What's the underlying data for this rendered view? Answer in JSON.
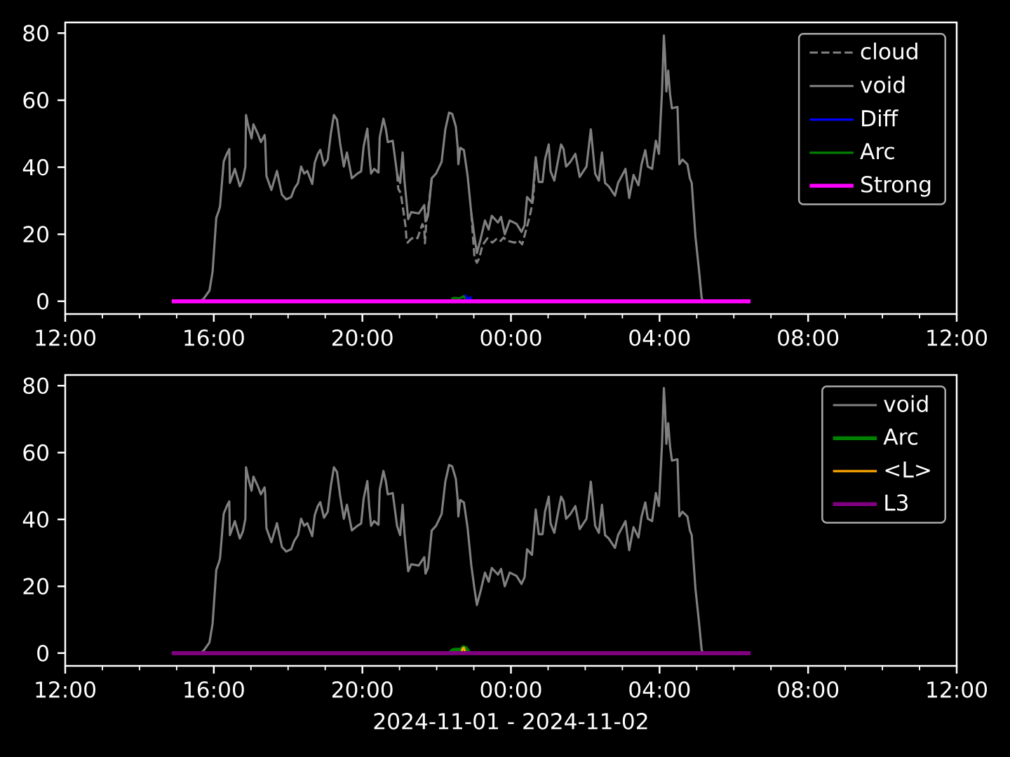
{
  "chart_data": [
    {
      "type": "line",
      "xlim": [
        "2024-11-01T12:00",
        "2024-11-02T12:00"
      ],
      "ylim": [
        -3.8,
        83.2
      ],
      "xticks": [
        {
          "value": "2024-11-01T12:00",
          "label": "12:00"
        },
        {
          "value": "2024-11-01T13:00",
          "label": null
        },
        {
          "value": "2024-11-01T14:00",
          "label": null
        },
        {
          "value": "2024-11-01T15:00",
          "label": null
        },
        {
          "value": "2024-11-01T16:00",
          "label": "16:00"
        },
        {
          "value": "2024-11-01T17:00",
          "label": null
        },
        {
          "value": "2024-11-01T18:00",
          "label": null
        },
        {
          "value": "2024-11-01T19:00",
          "label": null
        },
        {
          "value": "2024-11-01T20:00",
          "label": "20:00"
        },
        {
          "value": "2024-11-01T21:00",
          "label": null
        },
        {
          "value": "2024-11-01T22:00",
          "label": null
        },
        {
          "value": "2024-11-01T23:00",
          "label": null
        },
        {
          "value": "2024-11-02T00:00",
          "label": "00:00"
        },
        {
          "value": "2024-11-02T01:00",
          "label": null
        },
        {
          "value": "2024-11-02T02:00",
          "label": null
        },
        {
          "value": "2024-11-02T03:00",
          "label": null
        },
        {
          "value": "2024-11-02T04:00",
          "label": "04:00"
        },
        {
          "value": "2024-11-02T05:00",
          "label": null
        },
        {
          "value": "2024-11-02T06:00",
          "label": null
        },
        {
          "value": "2024-11-02T07:00",
          "label": null
        },
        {
          "value": "2024-11-02T08:00",
          "label": "08:00"
        },
        {
          "value": "2024-11-02T09:00",
          "label": null
        },
        {
          "value": "2024-11-02T10:00",
          "label": null
        },
        {
          "value": "2024-11-02T11:00",
          "label": null
        },
        {
          "value": "2024-11-02T12:00",
          "label": "12:00"
        }
      ],
      "yticks": [
        0,
        20,
        40,
        60,
        80
      ],
      "legend": "top right",
      "series": [
        {
          "name": "cloud",
          "color": "#808080",
          "line_style": "dashed",
          "x": [
            "2024-11-01T20:56",
            "2024-11-01T20:58",
            "2024-11-01T21:02",
            "2024-11-01T21:10",
            "2024-11-01T21:11",
            "2024-11-01T21:13",
            "2024-11-01T21:18",
            "2024-11-01T21:24",
            "2024-11-01T21:29",
            "2024-11-01T21:34",
            "2024-11-01T21:37",
            "2024-11-01T21:40",
            "2024-11-01T21:41",
            "2024-11-01T21:43",
            "2024-11-01T21:48",
            "2024-11-01T21:52",
            "2024-11-01T22:24",
            "2024-11-01T22:56",
            "2024-11-01T23:01",
            "2024-11-01T23:05",
            "2024-11-01T23:09",
            "2024-11-01T23:14",
            "2024-11-01T23:22",
            "2024-11-01T23:30",
            "2024-11-01T23:36",
            "2024-11-01T23:42",
            "2024-11-01T23:48",
            "2024-11-01T23:54",
            "2024-11-02T00:00",
            "2024-11-02T00:06",
            "2024-11-02T00:12",
            "2024-11-02T00:18",
            "2024-11-02T00:20",
            "2024-11-02T00:24",
            "2024-11-02T00:28",
            "2024-11-02T00:32",
            "2024-11-02T00:36",
            "2024-11-02T00:40"
          ],
          "values": [
            38.1,
            33.5,
            32.3,
            22,
            19,
            17.5,
            18.5,
            19.2,
            18.8,
            21.5,
            23,
            21.5,
            17.3,
            23,
            30,
            36.7,
            null,
            26.2,
            13.2,
            11.5,
            13,
            16.7,
            18.8,
            17.5,
            18.5,
            17.8,
            19,
            18,
            17.8,
            17.5,
            18.2,
            17,
            18.2,
            21,
            23.7,
            26.8,
            30.7,
            43
          ]
        },
        {
          "name": "void",
          "color": "#808080",
          "x": [
            "2024-11-01T15:36",
            "2024-11-01T15:43",
            "2024-11-01T15:53",
            "2024-11-01T15:58",
            "2024-11-01T16:04",
            "2024-11-01T16:08",
            "2024-11-01T16:10",
            "2024-11-01T16:16",
            "2024-11-01T16:21",
            "2024-11-01T16:25",
            "2024-11-01T16:26",
            "2024-11-01T16:34",
            "2024-11-01T16:42",
            "2024-11-01T16:47",
            "2024-11-01T16:51",
            "2024-11-01T16:52",
            "2024-11-01T16:56",
            "2024-11-01T17:01",
            "2024-11-01T17:04",
            "2024-11-01T17:11",
            "2024-11-01T17:16",
            "2024-11-01T17:22",
            "2024-11-01T17:23",
            "2024-11-01T17:25",
            "2024-11-01T17:33",
            "2024-11-01T17:42",
            "2024-11-01T17:50",
            "2024-11-01T17:57",
            "2024-11-01T18:05",
            "2024-11-01T18:10",
            "2024-11-01T18:16",
            "2024-11-01T18:21",
            "2024-11-01T18:26",
            "2024-11-01T18:31",
            "2024-11-01T18:39",
            "2024-11-01T18:43",
            "2024-11-01T18:48",
            "2024-11-01T18:52",
            "2024-11-01T18:58",
            "2024-11-01T19:04",
            "2024-11-01T19:09",
            "2024-11-01T19:14",
            "2024-11-01T19:19",
            "2024-11-01T19:24",
            "2024-11-01T19:30",
            "2024-11-01T19:35",
            "2024-11-01T19:43",
            "2024-11-01T19:52",
            "2024-11-01T19:58",
            "2024-11-01T20:02",
            "2024-11-01T20:08",
            "2024-11-01T20:11",
            "2024-11-01T20:14",
            "2024-11-01T20:19",
            "2024-11-01T20:26",
            "2024-11-01T20:28",
            "2024-11-01T20:34",
            "2024-11-01T20:38",
            "2024-11-01T20:41",
            "2024-11-01T20:49",
            "2024-11-01T20:56",
            "2024-11-01T21:01",
            "2024-11-01T21:05",
            "2024-11-01T21:08",
            "2024-11-01T21:14",
            "2024-11-01T21:19",
            "2024-11-01T21:31",
            "2024-11-01T21:40",
            "2024-11-01T21:42",
            "2024-11-01T21:46",
            "2024-11-01T21:52",
            "2024-11-01T21:59",
            "2024-11-01T22:08",
            "2024-11-01T22:14",
            "2024-11-01T22:20",
            "2024-11-01T22:25",
            "2024-11-01T22:31",
            "2024-11-01T22:34",
            "2024-11-01T22:35",
            "2024-11-01T22:38",
            "2024-11-01T22:44",
            "2024-11-01T22:50",
            "2024-11-01T22:56",
            "2024-11-01T23:01",
            "2024-11-01T23:05",
            "2024-11-01T23:11",
            "2024-11-01T23:18",
            "2024-11-01T23:24",
            "2024-11-01T23:29",
            "2024-11-01T23:39",
            "2024-11-01T23:44",
            "2024-11-01T23:50",
            "2024-11-01T23:58",
            "2024-11-02T00:09",
            "2024-11-02T00:17",
            "2024-11-02T00:22",
            "2024-11-02T00:26",
            "2024-11-02T00:34",
            "2024-11-02T00:40",
            "2024-11-02T00:45",
            "2024-11-02T00:51",
            "2024-11-02T00:55",
            "2024-11-02T01:01",
            "2024-11-02T01:04",
            "2024-11-02T01:10",
            "2024-11-02T01:17",
            "2024-11-02T01:21",
            "2024-11-02T01:25",
            "2024-11-02T01:29",
            "2024-11-02T01:36",
            "2024-11-02T01:44",
            "2024-11-02T01:51",
            "2024-11-02T02:02",
            "2024-11-02T02:09",
            "2024-11-02T02:16",
            "2024-11-02T02:22",
            "2024-11-02T02:27",
            "2024-11-02T02:32",
            "2024-11-02T02:38",
            "2024-11-02T02:48",
            "2024-11-02T02:53",
            "2024-11-02T02:59",
            "2024-11-02T03:05",
            "2024-11-02T03:11",
            "2024-11-02T03:18",
            "2024-11-02T03:26",
            "2024-11-02T03:31",
            "2024-11-02T03:37",
            "2024-11-02T03:41",
            "2024-11-02T03:48",
            "2024-11-02T03:54",
            "2024-11-02T03:59",
            "2024-11-02T04:04",
            "2024-11-02T04:07",
            "2024-11-02T04:09",
            "2024-11-02T04:11",
            "2024-11-02T04:14",
            "2024-11-02T04:17",
            "2024-11-02T04:20",
            "2024-11-02T04:29",
            "2024-11-02T04:32",
            "2024-11-02T04:37",
            "2024-11-02T04:45",
            "2024-11-02T04:49",
            "2024-11-02T04:52",
            "2024-11-02T04:58",
            "2024-11-02T05:04",
            "2024-11-02T05:08",
            "2024-11-02T05:10"
          ],
          "values": [
            0,
            0.6,
            3.2,
            8.8,
            24.9,
            27,
            28.3,
            41.7,
            44,
            45.4,
            35.3,
            39.5,
            34.3,
            36.4,
            40.2,
            55.6,
            52.1,
            48.6,
            52.8,
            50,
            47.5,
            49.6,
            47.9,
            37.4,
            33.2,
            38.9,
            31.8,
            30.4,
            31.1,
            33.6,
            35.3,
            40.2,
            38.1,
            38.9,
            35,
            41.3,
            44,
            45.2,
            40.5,
            42.3,
            50,
            55.6,
            54.2,
            47.2,
            40.2,
            44.4,
            36.7,
            38.1,
            38.8,
            46.2,
            51.5,
            44,
            38.1,
            39.5,
            38.4,
            48.9,
            54.5,
            51.3,
            47.5,
            47.9,
            38.1,
            35.3,
            44.4,
            36,
            24.5,
            26.6,
            26.2,
            28.7,
            23.8,
            25.5,
            36.7,
            38.1,
            41.6,
            51.3,
            56.3,
            55.9,
            52.1,
            45.8,
            40.9,
            45.8,
            45.1,
            37.4,
            26.2,
            19.3,
            14.4,
            18.6,
            24.1,
            21.4,
            25.5,
            23.5,
            25.2,
            20,
            24.1,
            23.1,
            20.7,
            22.7,
            31.1,
            29.4,
            43,
            35.6,
            35.6,
            42.3,
            46.8,
            38.8,
            36,
            43,
            46.8,
            45.4,
            40.2,
            41.6,
            44,
            37.1,
            40.2,
            51.3,
            38.1,
            36,
            44.4,
            35.3,
            34.3,
            31.5,
            35.3,
            37.4,
            39.5,
            30.8,
            37.7,
            34.6,
            40.9,
            45.1,
            40.2,
            39.5,
            47.9,
            44,
            62.6,
            79.3,
            73,
            62.6,
            68.8,
            61.8,
            57.6,
            58,
            40.9,
            42.3,
            40.9,
            36.7,
            35.3,
            19.3,
            8.8,
            1.1,
            0
          ]
        },
        {
          "name": "Diff",
          "color": "#0000ff",
          "x": [
            "2024-11-01T22:45",
            "2024-11-01T22:47",
            "2024-11-01T22:49",
            "2024-11-01T22:52",
            "2024-11-01T22:54",
            "2024-11-01T22:56"
          ],
          "values": [
            1.9,
            1.5,
            0.8,
            0.8,
            1.3,
            0.7
          ]
        },
        {
          "name": "Arc",
          "color": "#008000",
          "x": [
            "2024-11-01T22:24",
            "2024-11-01T22:27",
            "2024-11-01T22:31",
            "2024-11-01T22:36",
            "2024-11-01T22:40",
            "2024-11-01T22:43",
            "2024-11-01T22:46"
          ],
          "values": [
            0.7,
            1.0,
            1.0,
            0.9,
            1.1,
            1.5,
            0.7
          ]
        },
        {
          "name": "Strong",
          "color": "#ff00ff",
          "x": [
            "2024-11-01T14:52",
            "2024-11-02T06:27"
          ],
          "values": [
            0,
            0
          ]
        }
      ]
    },
    {
      "type": "line",
      "xlim": [
        "2024-11-01T12:00",
        "2024-11-02T12:00"
      ],
      "ylim": [
        -3.8,
        83.2
      ],
      "xlabel": "2024-11-01 - 2024-11-02",
      "xticks": [
        {
          "value": "2024-11-01T12:00",
          "label": "12:00"
        },
        {
          "value": "2024-11-01T13:00",
          "label": null
        },
        {
          "value": "2024-11-01T14:00",
          "label": null
        },
        {
          "value": "2024-11-01T15:00",
          "label": null
        },
        {
          "value": "2024-11-01T16:00",
          "label": "16:00"
        },
        {
          "value": "2024-11-01T17:00",
          "label": null
        },
        {
          "value": "2024-11-01T18:00",
          "label": null
        },
        {
          "value": "2024-11-01T19:00",
          "label": null
        },
        {
          "value": "2024-11-01T20:00",
          "label": "20:00"
        },
        {
          "value": "2024-11-01T21:00",
          "label": null
        },
        {
          "value": "2024-11-01T22:00",
          "label": null
        },
        {
          "value": "2024-11-01T23:00",
          "label": null
        },
        {
          "value": "2024-11-02T00:00",
          "label": "00:00"
        },
        {
          "value": "2024-11-02T01:00",
          "label": null
        },
        {
          "value": "2024-11-02T02:00",
          "label": null
        },
        {
          "value": "2024-11-02T03:00",
          "label": null
        },
        {
          "value": "2024-11-02T04:00",
          "label": "04:00"
        },
        {
          "value": "2024-11-02T05:00",
          "label": null
        },
        {
          "value": "2024-11-02T06:00",
          "label": null
        },
        {
          "value": "2024-11-02T07:00",
          "label": null
        },
        {
          "value": "2024-11-02T08:00",
          "label": "08:00"
        },
        {
          "value": "2024-11-02T09:00",
          "label": null
        },
        {
          "value": "2024-11-02T10:00",
          "label": null
        },
        {
          "value": "2024-11-02T11:00",
          "label": null
        },
        {
          "value": "2024-11-02T12:00",
          "label": "12:00"
        }
      ],
      "yticks": [
        0,
        20,
        40,
        60,
        80
      ],
      "legend": "top right",
      "series": [
        {
          "name": "void",
          "color": "#808080",
          "x": [
            "2024-11-01T15:36",
            "2024-11-01T15:43",
            "2024-11-01T15:53",
            "2024-11-01T15:58",
            "2024-11-01T16:04",
            "2024-11-01T16:08",
            "2024-11-01T16:10",
            "2024-11-01T16:16",
            "2024-11-01T16:21",
            "2024-11-01T16:25",
            "2024-11-01T16:26",
            "2024-11-01T16:34",
            "2024-11-01T16:42",
            "2024-11-01T16:47",
            "2024-11-01T16:51",
            "2024-11-01T16:52",
            "2024-11-01T16:56",
            "2024-11-01T17:01",
            "2024-11-01T17:04",
            "2024-11-01T17:11",
            "2024-11-01T17:16",
            "2024-11-01T17:22",
            "2024-11-01T17:23",
            "2024-11-01T17:25",
            "2024-11-01T17:33",
            "2024-11-01T17:42",
            "2024-11-01T17:50",
            "2024-11-01T17:57",
            "2024-11-01T18:05",
            "2024-11-01T18:10",
            "2024-11-01T18:16",
            "2024-11-01T18:21",
            "2024-11-01T18:26",
            "2024-11-01T18:31",
            "2024-11-01T18:39",
            "2024-11-01T18:43",
            "2024-11-01T18:48",
            "2024-11-01T18:52",
            "2024-11-01T18:58",
            "2024-11-01T19:04",
            "2024-11-01T19:09",
            "2024-11-01T19:14",
            "2024-11-01T19:19",
            "2024-11-01T19:24",
            "2024-11-01T19:30",
            "2024-11-01T19:35",
            "2024-11-01T19:43",
            "2024-11-01T19:52",
            "2024-11-01T19:58",
            "2024-11-01T20:02",
            "2024-11-01T20:08",
            "2024-11-01T20:11",
            "2024-11-01T20:14",
            "2024-11-01T20:19",
            "2024-11-01T20:26",
            "2024-11-01T20:28",
            "2024-11-01T20:34",
            "2024-11-01T20:38",
            "2024-11-01T20:41",
            "2024-11-01T20:49",
            "2024-11-01T20:56",
            "2024-11-01T21:01",
            "2024-11-01T21:05",
            "2024-11-01T21:08",
            "2024-11-01T21:14",
            "2024-11-01T21:19",
            "2024-11-01T21:31",
            "2024-11-01T21:40",
            "2024-11-01T21:42",
            "2024-11-01T21:46",
            "2024-11-01T21:52",
            "2024-11-01T21:59",
            "2024-11-01T22:08",
            "2024-11-01T22:14",
            "2024-11-01T22:20",
            "2024-11-01T22:25",
            "2024-11-01T22:31",
            "2024-11-01T22:34",
            "2024-11-01T22:35",
            "2024-11-01T22:38",
            "2024-11-01T22:44",
            "2024-11-01T22:50",
            "2024-11-01T22:56",
            "2024-11-01T23:01",
            "2024-11-01T23:05",
            "2024-11-01T23:11",
            "2024-11-01T23:18",
            "2024-11-01T23:24",
            "2024-11-01T23:29",
            "2024-11-01T23:39",
            "2024-11-01T23:44",
            "2024-11-01T23:50",
            "2024-11-01T23:58",
            "2024-11-02T00:09",
            "2024-11-02T00:17",
            "2024-11-02T00:22",
            "2024-11-02T00:26",
            "2024-11-02T00:34",
            "2024-11-02T00:40",
            "2024-11-02T00:45",
            "2024-11-02T00:51",
            "2024-11-02T00:55",
            "2024-11-02T01:01",
            "2024-11-02T01:04",
            "2024-11-02T01:10",
            "2024-11-02T01:17",
            "2024-11-02T01:21",
            "2024-11-02T01:25",
            "2024-11-02T01:29",
            "2024-11-02T01:36",
            "2024-11-02T01:44",
            "2024-11-02T01:51",
            "2024-11-02T02:02",
            "2024-11-02T02:09",
            "2024-11-02T02:16",
            "2024-11-02T02:22",
            "2024-11-02T02:27",
            "2024-11-02T02:32",
            "2024-11-02T02:38",
            "2024-11-02T02:48",
            "2024-11-02T02:53",
            "2024-11-02T02:59",
            "2024-11-02T03:05",
            "2024-11-02T03:11",
            "2024-11-02T03:18",
            "2024-11-02T03:26",
            "2024-11-02T03:31",
            "2024-11-02T03:37",
            "2024-11-02T03:41",
            "2024-11-02T03:48",
            "2024-11-02T03:54",
            "2024-11-02T03:59",
            "2024-11-02T04:04",
            "2024-11-02T04:07",
            "2024-11-02T04:09",
            "2024-11-02T04:11",
            "2024-11-02T04:14",
            "2024-11-02T04:17",
            "2024-11-02T04:20",
            "2024-11-02T04:29",
            "2024-11-02T04:32",
            "2024-11-02T04:37",
            "2024-11-02T04:45",
            "2024-11-02T04:49",
            "2024-11-02T04:52",
            "2024-11-02T04:58",
            "2024-11-02T05:04",
            "2024-11-02T05:08",
            "2024-11-02T05:10"
          ],
          "values": [
            0,
            0.6,
            3.2,
            8.8,
            24.9,
            27,
            28.3,
            41.7,
            44,
            45.4,
            35.3,
            39.5,
            34.3,
            36.4,
            40.2,
            55.6,
            52.1,
            48.6,
            52.8,
            50,
            47.5,
            49.6,
            47.9,
            37.4,
            33.2,
            38.9,
            31.8,
            30.4,
            31.1,
            33.6,
            35.3,
            40.2,
            38.1,
            38.9,
            35,
            41.3,
            44,
            45.2,
            40.5,
            42.3,
            50,
            55.6,
            54.2,
            47.2,
            40.2,
            44.4,
            36.7,
            38.1,
            38.8,
            46.2,
            51.5,
            44,
            38.1,
            39.5,
            38.4,
            48.9,
            54.5,
            51.3,
            47.5,
            47.9,
            38.1,
            35.3,
            44.4,
            36,
            24.5,
            26.6,
            26.2,
            28.7,
            23.8,
            25.5,
            36.7,
            38.1,
            41.6,
            51.3,
            56.3,
            55.9,
            52.1,
            45.8,
            40.9,
            45.8,
            45.1,
            37.4,
            26.2,
            19.3,
            14.4,
            18.6,
            24.1,
            21.4,
            25.5,
            23.5,
            25.2,
            20,
            24.1,
            23.1,
            20.7,
            22.7,
            31.1,
            29.4,
            43,
            35.6,
            35.6,
            42.3,
            46.8,
            38.8,
            36,
            43,
            46.8,
            45.4,
            40.2,
            41.6,
            44,
            37.1,
            40.2,
            51.3,
            38.1,
            36,
            44.4,
            35.3,
            34.3,
            31.5,
            35.3,
            37.4,
            39.5,
            30.8,
            37.7,
            34.6,
            40.9,
            45.1,
            40.2,
            39.5,
            47.9,
            44,
            62.6,
            79.3,
            73,
            62.6,
            68.8,
            61.8,
            57.6,
            58,
            40.9,
            42.3,
            40.9,
            36.7,
            35.3,
            19.3,
            8.8,
            1.1,
            0
          ]
        },
        {
          "name": "Arc",
          "color": "#008000",
          "x": [
            "2024-11-01T22:22",
            "2024-11-01T22:26",
            "2024-11-01T22:31",
            "2024-11-01T22:36",
            "2024-11-01T22:40",
            "2024-11-01T22:43",
            "2024-11-01T22:47",
            "2024-11-01T22:50",
            "2024-11-01T22:52"
          ],
          "values": [
            0.3,
            0.9,
            1.0,
            1.0,
            1.1,
            1.8,
            1.5,
            0.8,
            0.3
          ]
        },
        {
          "name": "<L>",
          "color": "#ffa500",
          "x": [
            "2024-11-01T22:40",
            "2024-11-01T22:42",
            "2024-11-01T22:44",
            "2024-11-01T22:46"
          ],
          "values": [
            0.3,
            1.4,
            1.6,
            0.3
          ]
        },
        {
          "name": "L3",
          "color": "#800080",
          "x": [
            "2024-11-01T14:52",
            "2024-11-02T06:27"
          ],
          "values": [
            0,
            0
          ]
        }
      ]
    }
  ]
}
